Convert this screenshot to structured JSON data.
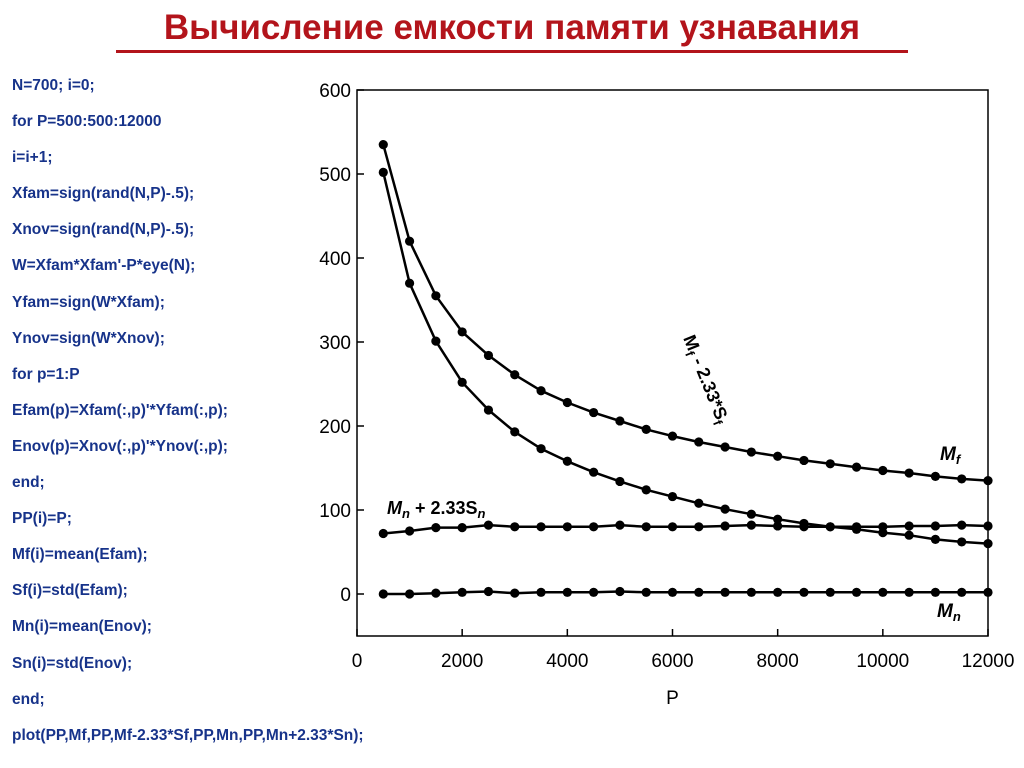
{
  "title": "Вычисление емкости памяти узнавания",
  "code_lines": [
    "N=700; i=0;",
    "for P=500:500:12000",
    "i=i+1;",
    "Xfam=sign(rand(N,P)-.5);",
    "Xnov=sign(rand(N,P)-.5);",
    "W=Xfam*Xfam'-P*eye(N);",
    "Yfam=sign(W*Xfam);",
    "Ynov=sign(W*Xnov);",
    "for p=1:P",
    "Efam(p)=Xfam(:,p)'*Yfam(:,p);",
    "Enov(p)=Xnov(:,p)'*Ynov(:,p);",
    "end;",
    "PP(i)=P;",
    "Mf(i)=mean(Efam);",
    "Sf(i)=std(Efam);",
    "Mn(i)=mean(Enov);",
    "Sn(i)=std(Enov);",
    "end;",
    "plot(PP,Mf,PP,Mf-2.33*Sf,PP,Mn,PP,Mn+2.33*Sn);"
  ],
  "colors": {
    "title": "#b3141b",
    "code": "#17338a",
    "lines": "#000000"
  },
  "chart_data": {
    "type": "line",
    "xlabel": "P",
    "ylabel": "",
    "xlim": [
      0,
      12000
    ],
    "ylim": [
      -50,
      600
    ],
    "xticks": [
      0,
      2000,
      4000,
      6000,
      8000,
      10000,
      12000
    ],
    "yticks": [
      0,
      100,
      200,
      300,
      400,
      500,
      600
    ],
    "grid": false,
    "x": [
      500,
      1000,
      1500,
      2000,
      2500,
      3000,
      3500,
      4000,
      4500,
      5000,
      5500,
      6000,
      6500,
      7000,
      7500,
      8000,
      8500,
      9000,
      9500,
      10000,
      10500,
      11000,
      11500,
      12000
    ],
    "series": [
      {
        "label_main": "M",
        "label_sub": "f",
        "values": [
          535,
          420,
          355,
          312,
          284,
          261,
          242,
          228,
          216,
          206,
          196,
          188,
          181,
          175,
          169,
          164,
          159,
          155,
          151,
          147,
          144,
          140,
          137,
          135
        ]
      },
      {
        "label_main": "M",
        "label_sub": "f",
        "label_rest": " - 2.33*S",
        "label_sub2": "f",
        "values": [
          502,
          370,
          301,
          252,
          219,
          193,
          173,
          158,
          145,
          134,
          124,
          116,
          108,
          101,
          95,
          89,
          84,
          80,
          77,
          73,
          70,
          65,
          62,
          60
        ]
      },
      {
        "label_main": "M",
        "label_sub": "n",
        "values": [
          0,
          0,
          1,
          2,
          3,
          1,
          2,
          2,
          2,
          3,
          2,
          2,
          2,
          2,
          2,
          2,
          2,
          2,
          2,
          2,
          2,
          2,
          2,
          2
        ]
      },
      {
        "label_main": "M",
        "label_sub": "n",
        "label_rest": " + 2.33S",
        "label_sub2": "n",
        "values": [
          72,
          75,
          79,
          79,
          82,
          80,
          80,
          80,
          80,
          82,
          80,
          80,
          80,
          81,
          82,
          81,
          80,
          80,
          80,
          80,
          81,
          81,
          82,
          81
        ]
      }
    ]
  }
}
